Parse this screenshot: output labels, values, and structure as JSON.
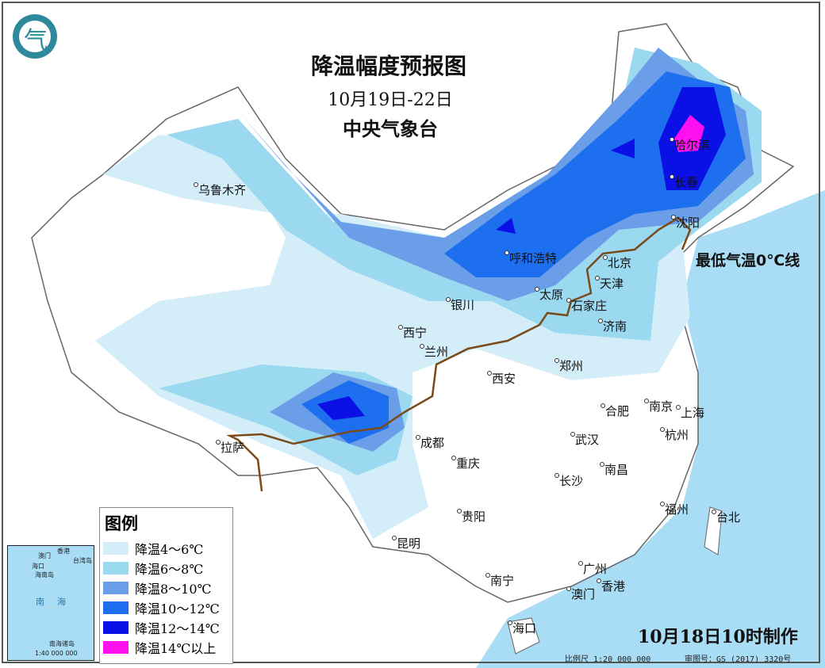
{
  "title": {
    "main": "降温幅度预报图",
    "dates": "10月19日-22日",
    "agency": "中央气象台"
  },
  "zero_line_label": "最低气温0℃线",
  "legend": {
    "title": "图例",
    "items": [
      {
        "label": "降温4～6℃",
        "color": "#d3eef8"
      },
      {
        "label": "降温6～8℃",
        "color": "#9ad9f0"
      },
      {
        "label": "降温8～10℃",
        "color": "#6a9ee8"
      },
      {
        "label": "降温10～12℃",
        "color": "#1e6ff0"
      },
      {
        "label": "降温12～14℃",
        "color": "#0a10e6"
      },
      {
        "label": "降温14℃以上",
        "color": "#ff10f0"
      }
    ]
  },
  "cities": [
    "乌鲁木齐",
    "哈尔滨",
    "长春",
    "沈阳",
    "呼和浩特",
    "北京",
    "天津",
    "银川",
    "太原",
    "石家庄",
    "济南",
    "西宁",
    "兰州",
    "郑州",
    "西安",
    "合肥",
    "南京",
    "上海",
    "成都",
    "武汉",
    "杭州",
    "拉萨",
    "重庆",
    "南昌",
    "长沙",
    "福州",
    "台北",
    "贵阳",
    "昆明",
    "南宁",
    "广州",
    "澳门",
    "香港",
    "海口"
  ],
  "inset": {
    "labels": [
      "香港",
      "澳门",
      "台湾岛",
      "海口",
      "海南岛",
      "南",
      "海",
      "南海诸岛"
    ],
    "scale": "1:40 000 000"
  },
  "made_time": "10月18日10时制作",
  "scale": "比例尺 1:20 000 000",
  "approval": "审图号：GS (2017) 3320号",
  "logo_glyph": "气",
  "sea_color": "#a9dcf5",
  "zero_line_color": "#7a4a1a"
}
